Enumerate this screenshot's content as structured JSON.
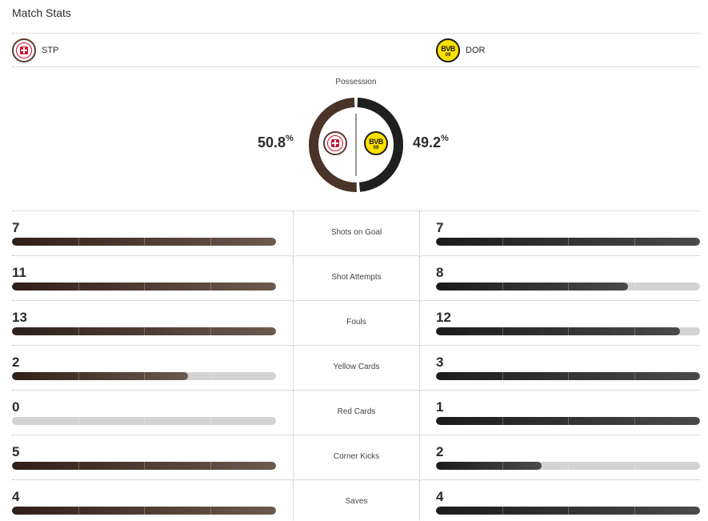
{
  "header": {
    "title": "Match Stats"
  },
  "teams": {
    "home": {
      "abbr": "STP",
      "logo_icon": "st-pauli-crest-icon",
      "color": "#4a3328"
    },
    "away": {
      "abbr": "DOR",
      "logo_icon": "bvb-crest-icon",
      "color": "#1f1f1f",
      "crest_text": "BVB",
      "crest_sub": "09"
    }
  },
  "possession": {
    "label": "Possession",
    "home_value": "50.8",
    "away_value": "49.2",
    "unit": "%",
    "home_fraction": 0.508,
    "away_fraction": 0.492
  },
  "stats": [
    {
      "label": "Shots on Goal",
      "home": "7",
      "away": "7",
      "home_fraction": 1.0,
      "away_fraction": 1.0
    },
    {
      "label": "Shot Attempts",
      "home": "11",
      "away": "8",
      "home_fraction": 1.0,
      "away_fraction": 0.727
    },
    {
      "label": "Fouls",
      "home": "13",
      "away": "12",
      "home_fraction": 1.0,
      "away_fraction": 0.923
    },
    {
      "label": "Yellow Cards",
      "home": "2",
      "away": "3",
      "home_fraction": 0.667,
      "away_fraction": 1.0
    },
    {
      "label": "Red Cards",
      "home": "0",
      "away": "1",
      "home_fraction": 0.0,
      "away_fraction": 1.0
    },
    {
      "label": "Corner Kicks",
      "home": "5",
      "away": "2",
      "home_fraction": 1.0,
      "away_fraction": 0.4
    },
    {
      "label": "Saves",
      "home": "4",
      "away": "4",
      "home_fraction": 1.0,
      "away_fraction": 1.0
    }
  ]
}
